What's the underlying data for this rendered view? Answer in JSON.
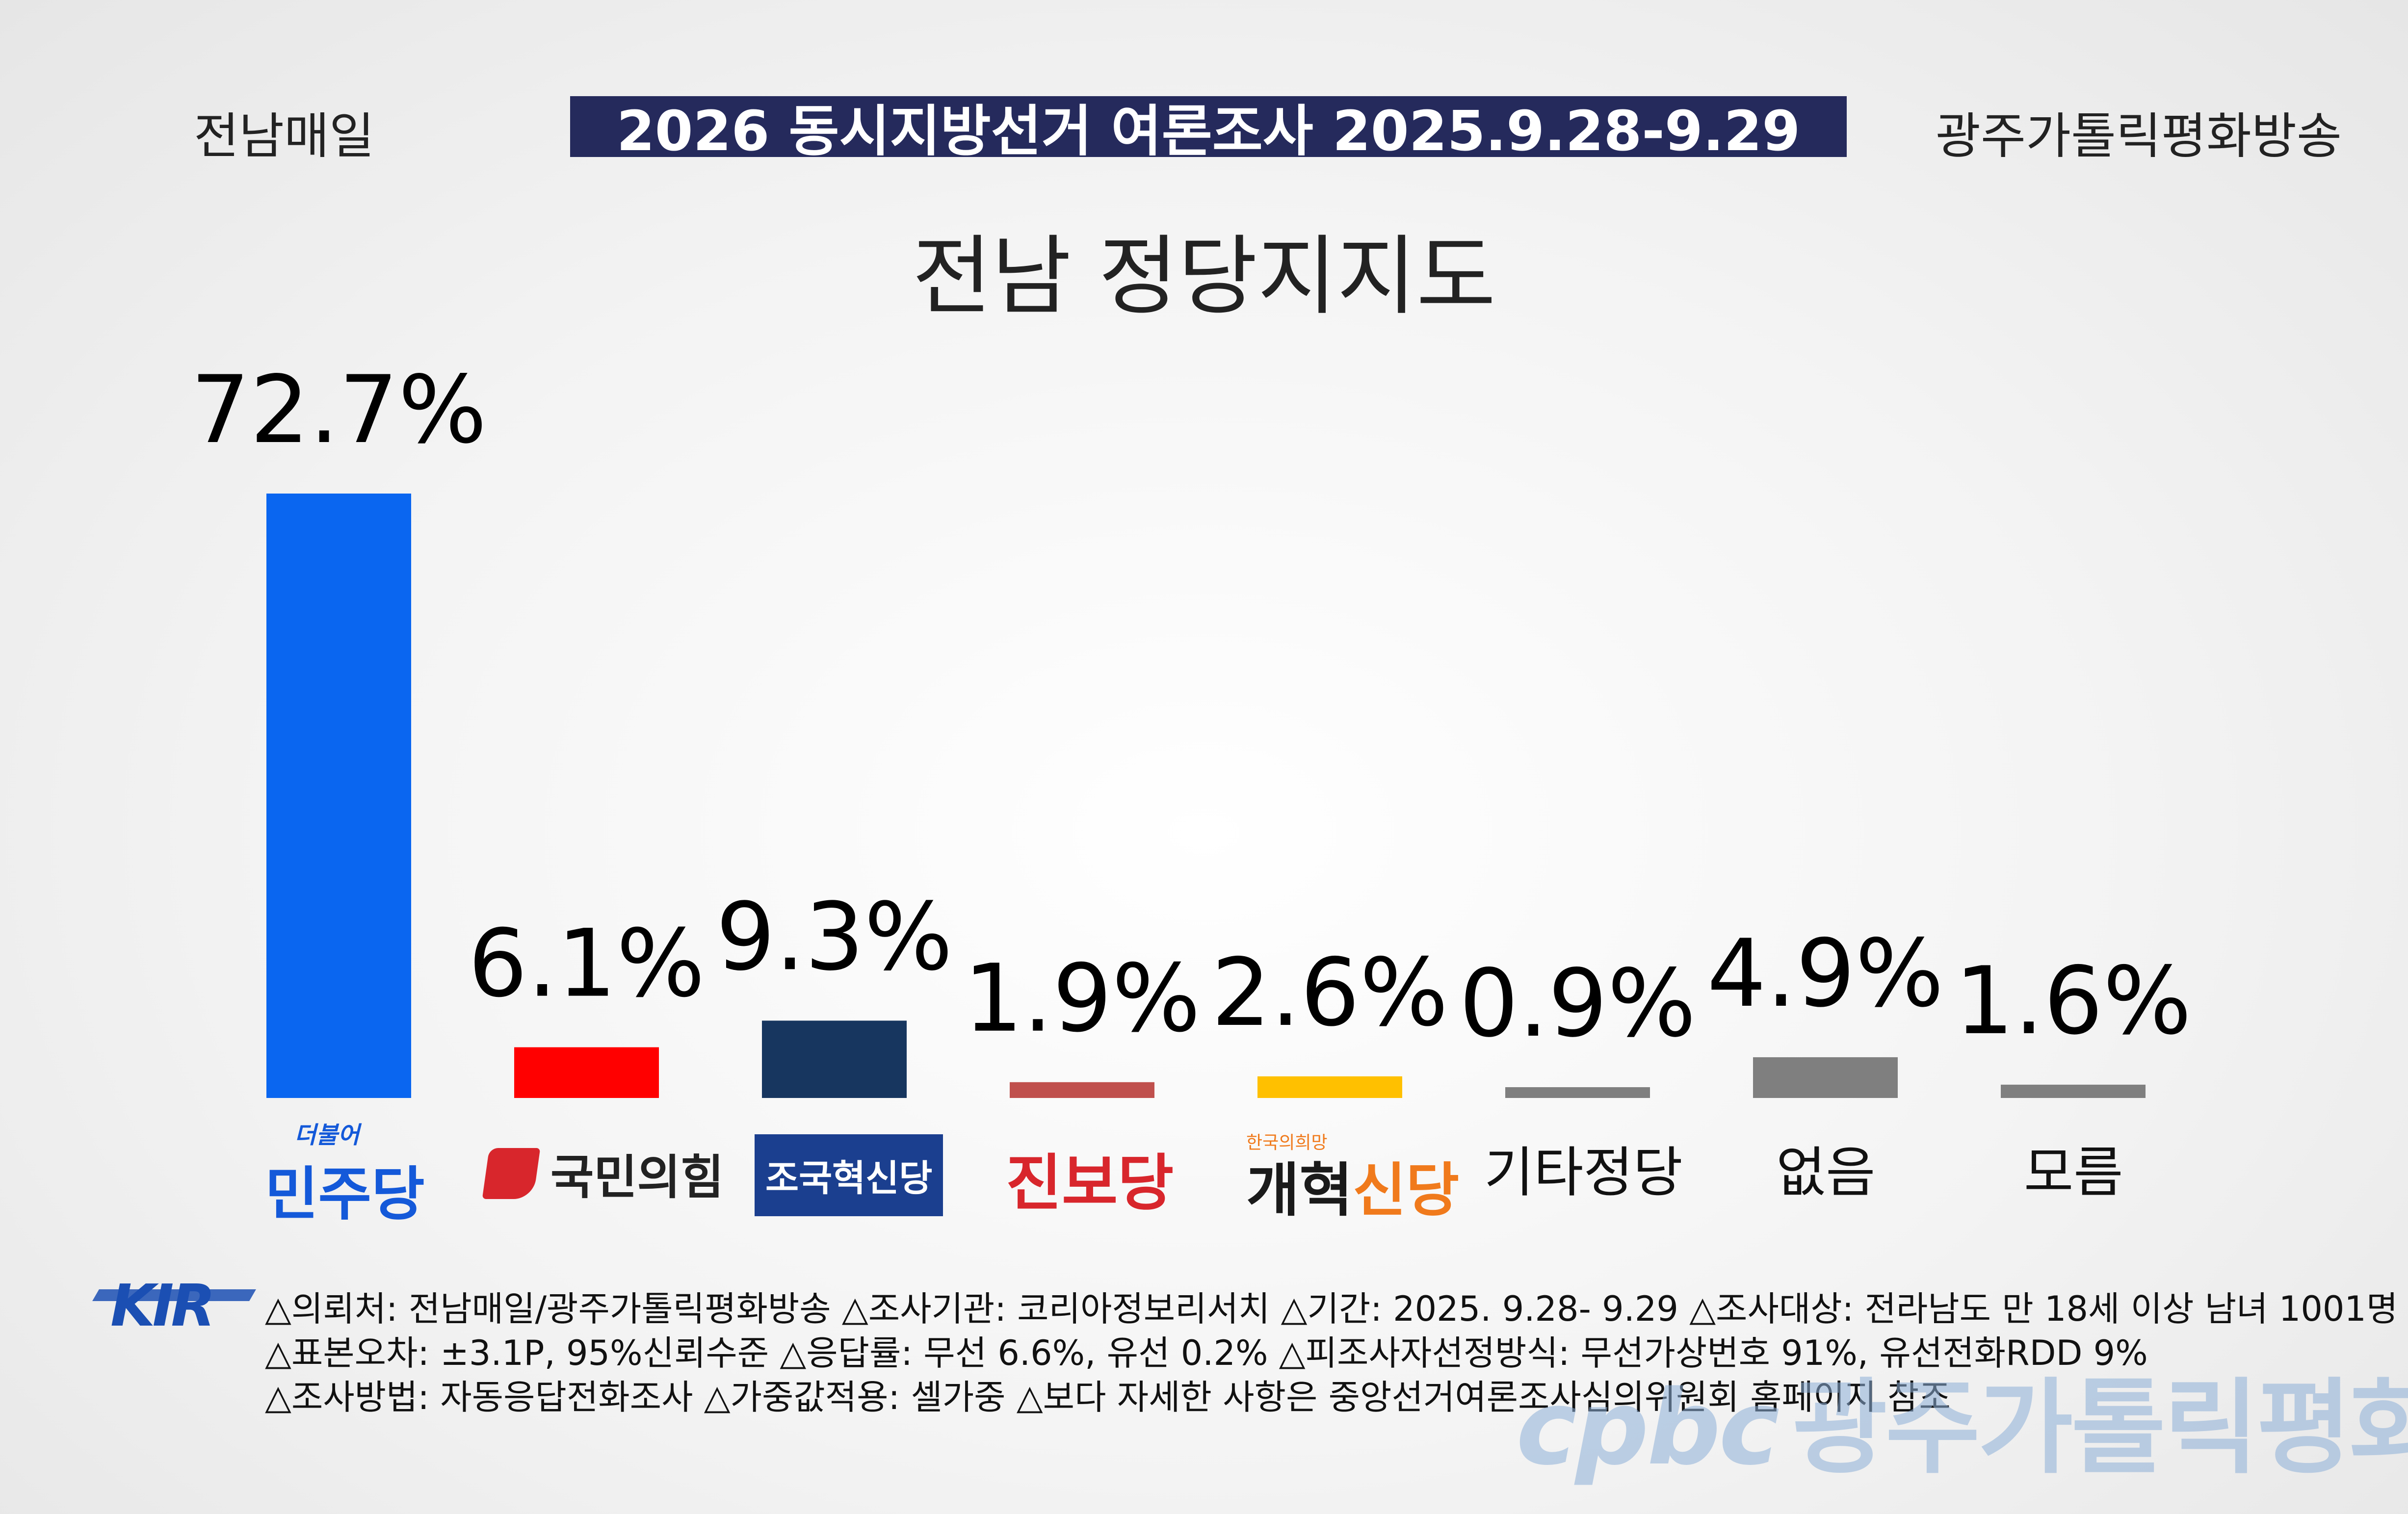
{
  "header": {
    "left": "전남매일",
    "banner": "2026 동시지방선거 여론조사 2025.9.28-9.29",
    "right": "광주가톨릭평화방송"
  },
  "chart_data": {
    "type": "bar",
    "title": "전남 정당지지도",
    "categories": [
      "더불어민주당",
      "국민의힘",
      "조국혁신당",
      "진보당",
      "개혁신당",
      "기타정당",
      "없음",
      "모름"
    ],
    "values": [
      72.7,
      6.1,
      9.3,
      1.9,
      2.6,
      0.9,
      4.9,
      1.6
    ],
    "value_labels": [
      "72.7%",
      "6.1%",
      "9.3%",
      "1.9%",
      "2.6%",
      "0.9%",
      "4.9%",
      "1.6%"
    ],
    "colors": [
      "#0a66f0",
      "#ff0000",
      "#17365f",
      "#c0504d",
      "#ffc000",
      "#7f7f7f",
      "#7f7f7f",
      "#7f7f7f"
    ],
    "ylim": [
      0,
      72.7
    ],
    "grid": false,
    "legend": "none"
  },
  "logos": {
    "minju_small": "더불어",
    "minju": "민주당",
    "ppp": "국민의힘",
    "rebuild": "조국혁신당",
    "progressive": "진보당",
    "reform_small": "한국의희망",
    "reform_a": "개혁",
    "reform_b": "신당",
    "others": "기타정당",
    "none": "없음",
    "unknown": "모름"
  },
  "footnotes": [
    "△의뢰처: 전남매일/광주가톨릭평화방송 △조사기관: 코리아정보리서치 △기간: 2025. 9.28- 9.29 △조사대상: 전라남도 만 18세 이상 남녀 1001명",
    "△표본오차: ±3.1P, 95%신뢰수준 △응답률: 무선 6.6%, 유선 0.2% △피조사자선정방식: 무선가상번호 91%, 유선전화RDD 9%",
    "△조사방법: 자동응답전화조사 △가중값적용: 셀가중 △보다 자세한 사항은 중앙선거여론조사심의위원회 홈페이지 참조"
  ],
  "kir_logo": "KIR",
  "watermark": {
    "brand": "cpbc",
    "name": "광주가톨릭평화방송"
  }
}
